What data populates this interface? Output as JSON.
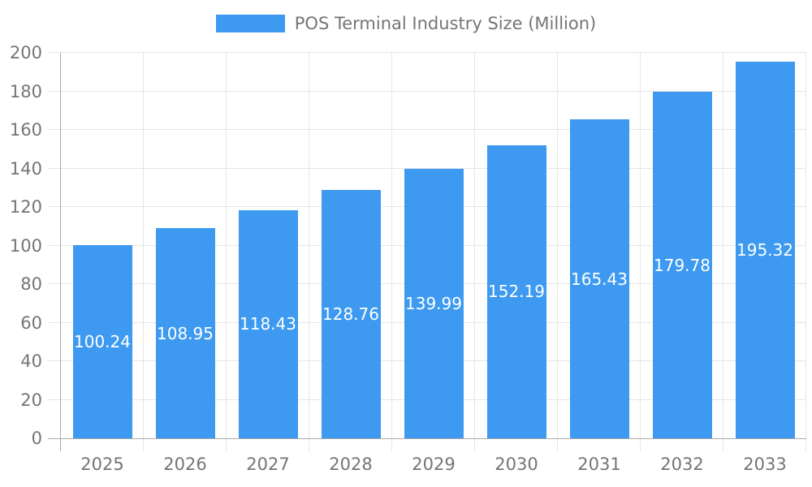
{
  "chart_data": {
    "type": "bar",
    "series_name": "POS Terminal Industry Size (Million)",
    "categories": [
      "2025",
      "2026",
      "2027",
      "2028",
      "2029",
      "2030",
      "2031",
      "2032",
      "2033"
    ],
    "values": [
      100.24,
      108.95,
      118.43,
      128.76,
      139.99,
      152.19,
      165.43,
      179.78,
      195.32
    ],
    "value_labels": [
      "100.24",
      "108.95",
      "118.43",
      "128.76",
      "139.99",
      "152.19",
      "165.43",
      "179.78",
      "195.32"
    ],
    "ylim": [
      0,
      200
    ],
    "ytick_step": 20,
    "ytick_labels": [
      "0",
      "20",
      "40",
      "60",
      "80",
      "100",
      "120",
      "140",
      "160",
      "180",
      "200"
    ],
    "xlabel": "",
    "ylabel": "",
    "grid": true,
    "legend_position": "top"
  },
  "colors": {
    "bar": "#3D9AF0",
    "grid": "#e6e6e6",
    "axis": "#ababab",
    "tick_text": "#757575",
    "value_text": "#ffffff",
    "background": "#ffffff"
  }
}
